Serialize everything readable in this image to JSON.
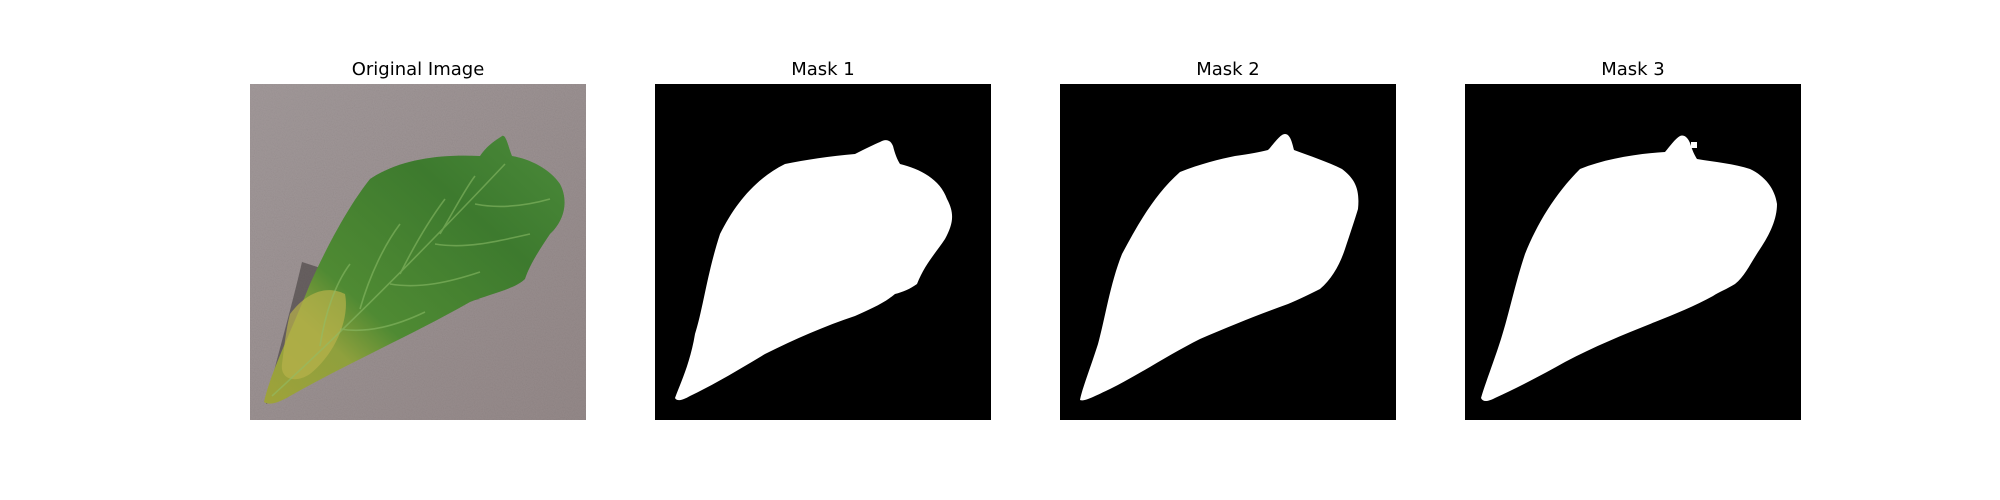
{
  "panels": [
    {
      "title": "Original Image"
    },
    {
      "title": "Mask 1"
    },
    {
      "title": "Mask 2"
    },
    {
      "title": "Mask 3"
    }
  ],
  "colors": {
    "background": "#ffffff",
    "cardboard": "#9b8f8f",
    "leaf_dark": "#2f6b2a",
    "leaf_mid": "#4a8a36",
    "leaf_yellow": "#b6b24a",
    "mask_bg": "#000000",
    "mask_fg": "#ffffff"
  }
}
